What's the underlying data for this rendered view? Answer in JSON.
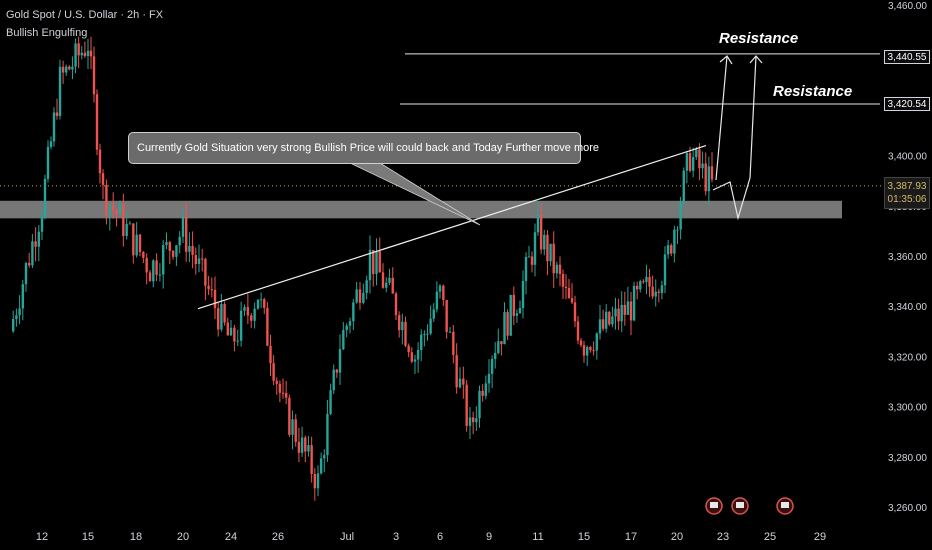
{
  "header": {
    "title": "Gold Spot / U.S. Dollar · 2h · FX",
    "indicator": "Bullish Engulfing"
  },
  "annotations": {
    "callout": "Currently Gold Situation very strong Bullish Price will could back and Today Further move more",
    "resistance_upper": "Resistance",
    "resistance_lower": "Resistance"
  },
  "colors": {
    "background": "#000000",
    "bullish": "#26a69a",
    "bearish": "#ef5350",
    "zone": "#8a8a8a",
    "text": "#d1d4dc"
  },
  "chart_data": {
    "type": "candlestick",
    "title": "Gold Spot / U.S. Dollar · 2h · FX",
    "ylim": [
      3255,
      3462
    ],
    "y_ticks": [
      3260,
      3280,
      3300,
      3320,
      3340,
      3360,
      3380,
      3400,
      3420,
      3440,
      3460
    ],
    "y_tick_labels": [
      "3,260.00",
      "3,280.00",
      "3,300.00",
      "3,320.00",
      "3,340.00",
      "3,360.00",
      "3,380.00",
      "3,400.00",
      "3,420.00",
      "3,440.00",
      "3,460.00"
    ],
    "x_tick_labels": [
      "12",
      "15",
      "18",
      "20",
      "24",
      "26",
      "Jul",
      "3",
      "6",
      "9",
      "11",
      "15",
      "17",
      "20",
      "23",
      "25",
      "29"
    ],
    "support_zone": [
      3375,
      3382
    ],
    "resistance_levels": [
      {
        "label": "3,440.55",
        "value": 3440.55
      },
      {
        "label": "3,420.54",
        "value": 3420.54
      }
    ],
    "current_price": {
      "label": "3,387.93",
      "value": 3387.93,
      "countdown": "01:35:06"
    },
    "trendline": {
      "from": {
        "x": "24",
        "y": 3339
      },
      "to": {
        "x": "20",
        "y": 3404
      }
    },
    "price_path": [
      {
        "x": "12",
        "y": 3330
      },
      {
        "x": "12",
        "y": 3380
      },
      {
        "x": "15",
        "y": 3430
      },
      {
        "x": "15",
        "y": 3445
      },
      {
        "x": "18",
        "y": 3385
      },
      {
        "x": "18",
        "y": 3375
      },
      {
        "x": "20",
        "y": 3355
      },
      {
        "x": "20",
        "y": 3370
      },
      {
        "x": "24",
        "y": 3340
      },
      {
        "x": "24",
        "y": 3325
      },
      {
        "x": "26",
        "y": 3345
      },
      {
        "x": "26",
        "y": 3300
      },
      {
        "x": "Jul",
        "y": 3270
      },
      {
        "x": "Jul",
        "y": 3325
      },
      {
        "x": "3",
        "y": 3360
      },
      {
        "x": "3",
        "y": 3340
      },
      {
        "x": "6",
        "y": 3320
      },
      {
        "x": "6",
        "y": 3345
      },
      {
        "x": "9",
        "y": 3290
      },
      {
        "x": "9",
        "y": 3320
      },
      {
        "x": "11",
        "y": 3345
      },
      {
        "x": "11",
        "y": 3370
      },
      {
        "x": "15",
        "y": 3350
      },
      {
        "x": "15",
        "y": 3325
      },
      {
        "x": "17",
        "y": 3330
      },
      {
        "x": "17",
        "y": 3340
      },
      {
        "x": "20",
        "y": 3355
      },
      {
        "x": "20",
        "y": 3400
      },
      {
        "x": "20",
        "y": 3388
      }
    ]
  }
}
